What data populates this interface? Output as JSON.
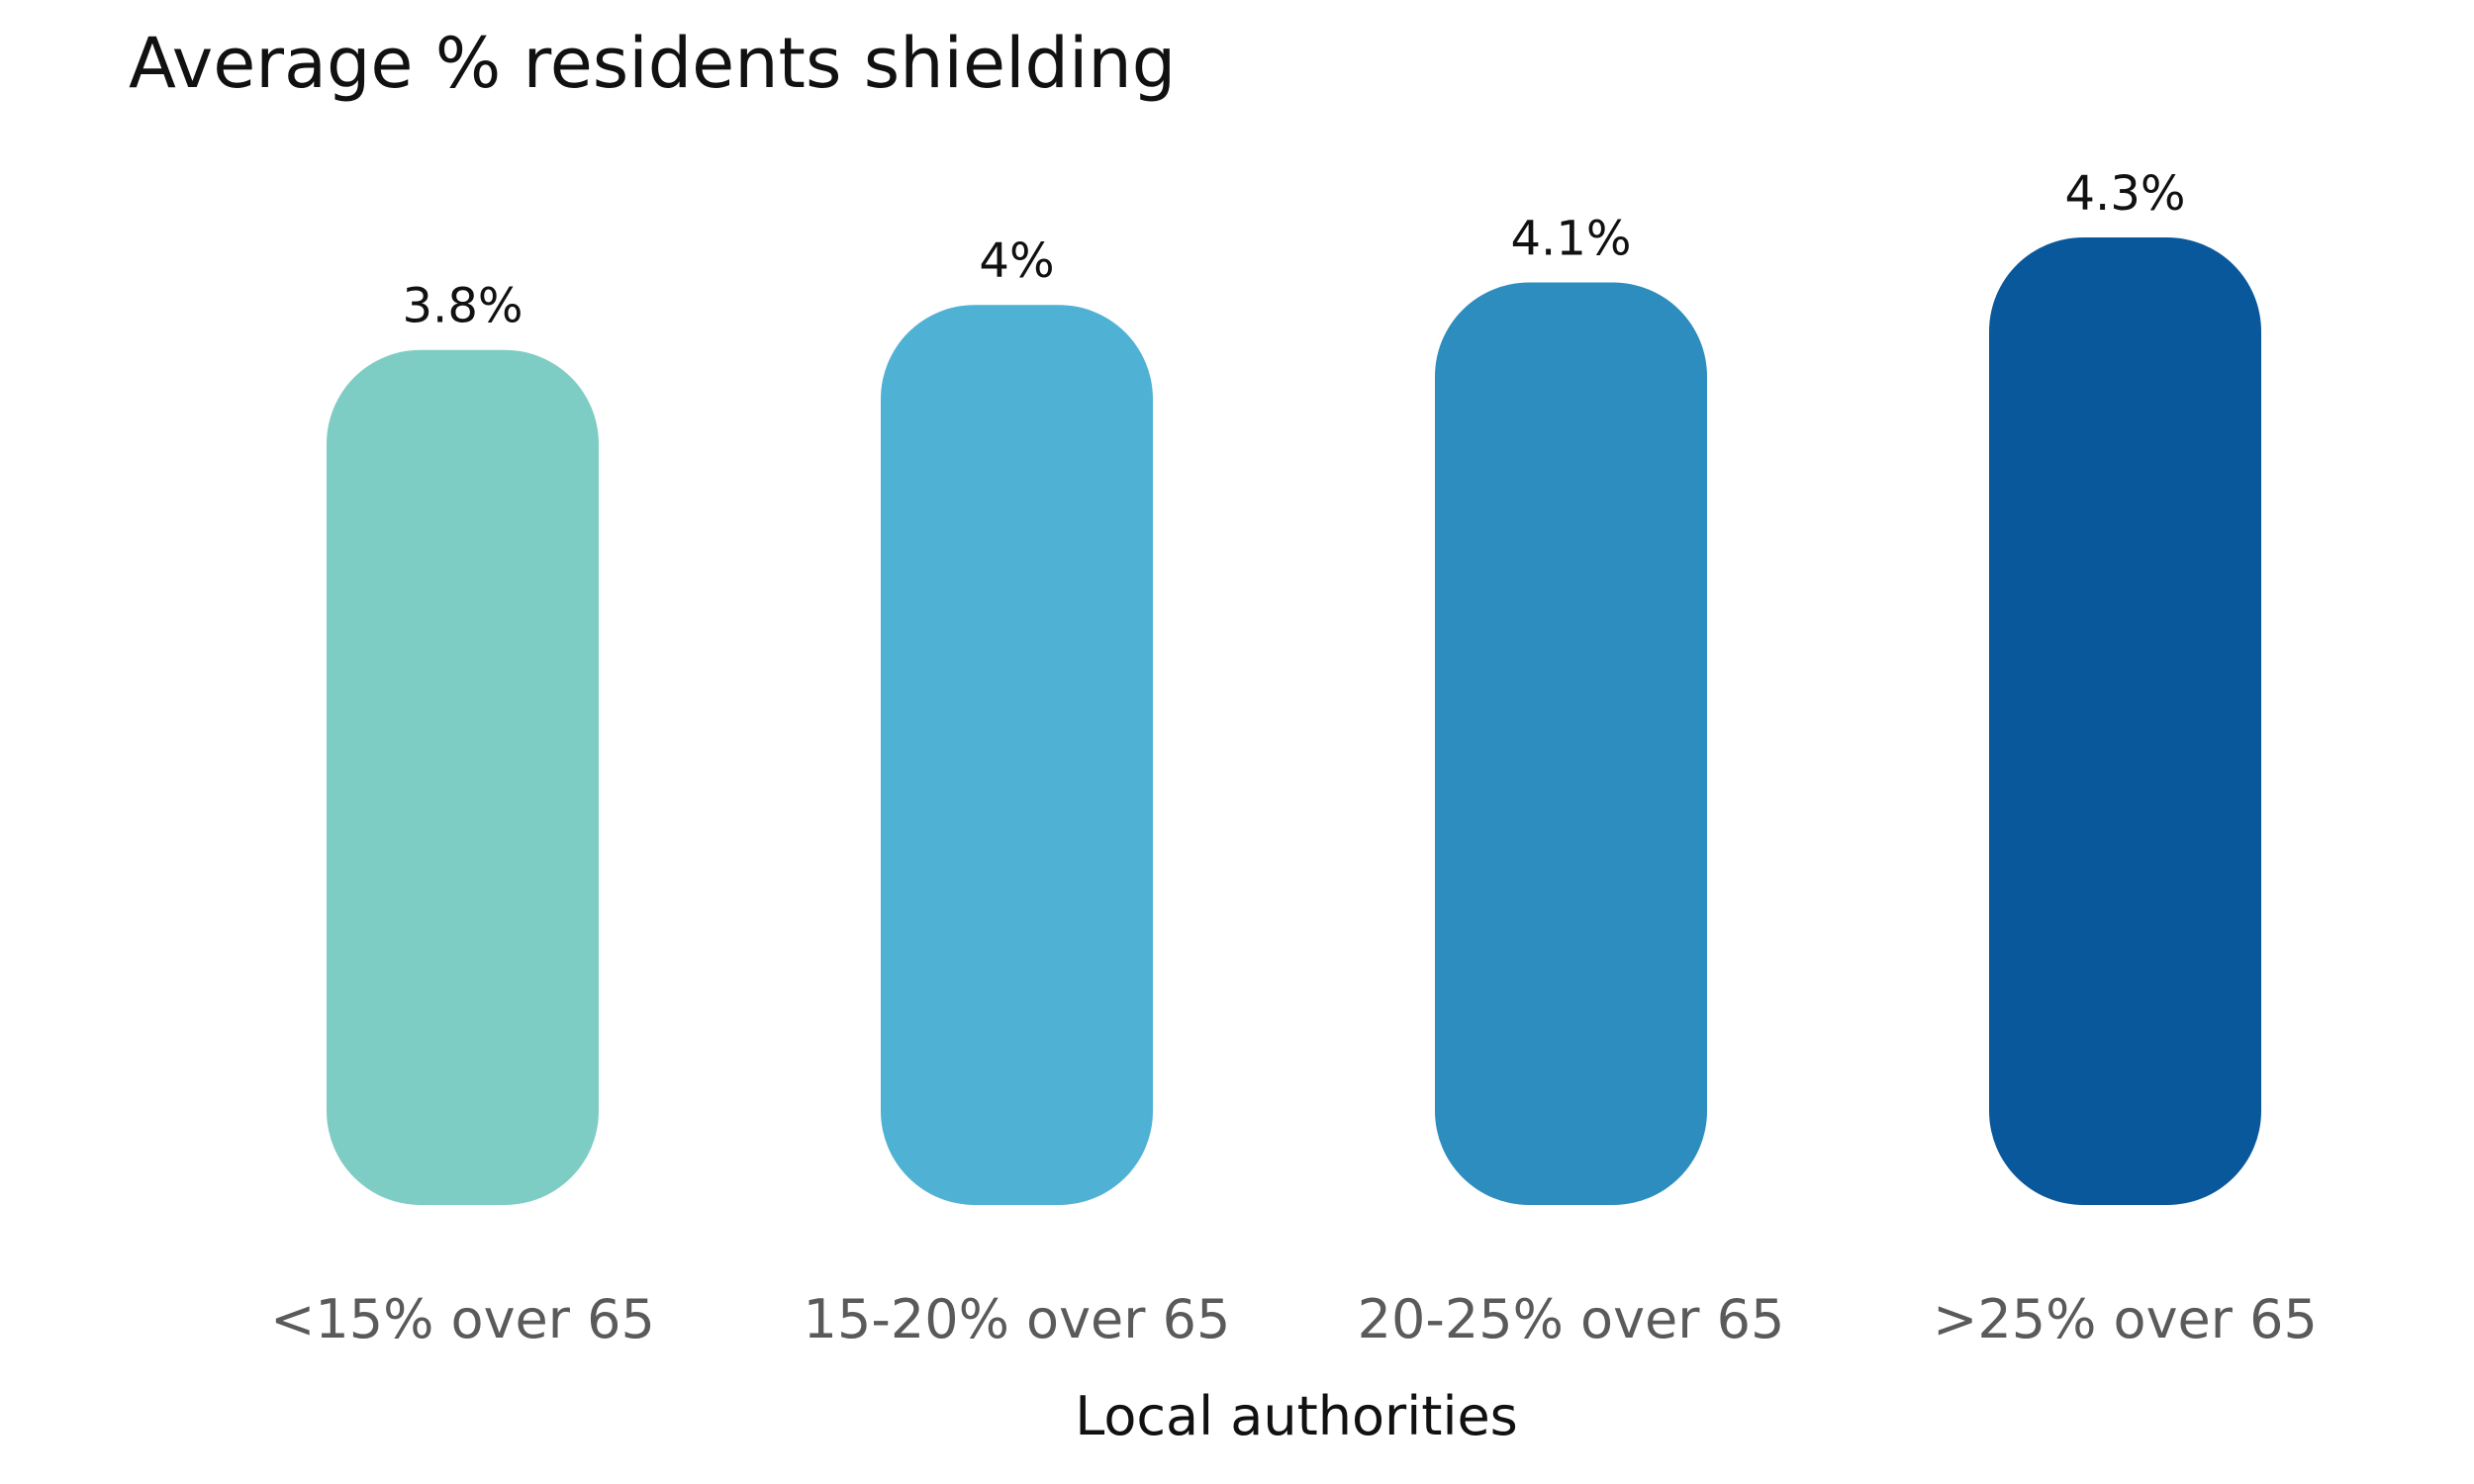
{
  "chart_data": {
    "type": "bar",
    "title": "Average % residents shielding",
    "xlabel": "Local authorities",
    "ylabel": "",
    "categories": [
      "<15% over 65",
      "15-20% over 65",
      "20-25% over 65",
      ">25% over 65"
    ],
    "values": [
      3.8,
      4.0,
      4.1,
      4.3
    ],
    "value_labels": [
      "3.8%",
      "4%",
      "4.1%",
      "4.3%"
    ],
    "colors": [
      "#7ECDC4",
      "#4FB1D3",
      "#2D8DBE",
      "#0A589C"
    ],
    "ylim": [
      0,
      4.3
    ],
    "grid": false,
    "legend": "none"
  }
}
